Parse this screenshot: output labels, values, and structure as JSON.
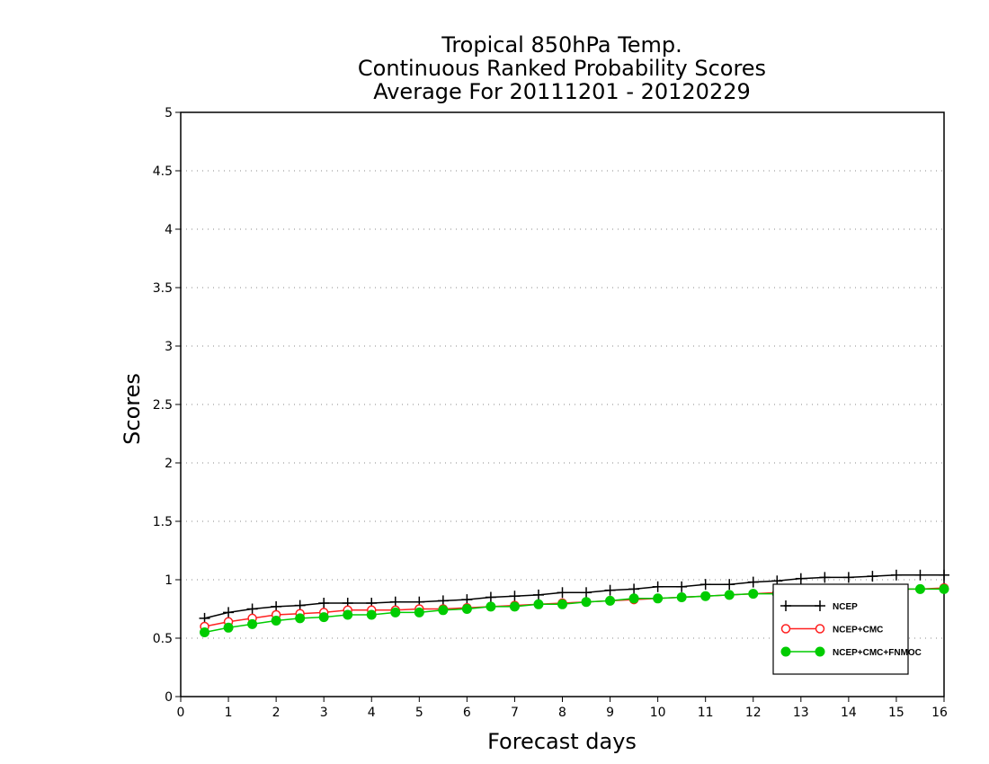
{
  "chart_data": {
    "type": "line",
    "title": [
      "Tropical 850hPa Temp.",
      "Continuous Ranked Probability Scores",
      "Average For 20111201 - 20120229"
    ],
    "xlabel": "Forecast days",
    "ylabel": "Scores",
    "xlim": [
      0,
      16
    ],
    "ylim": [
      0,
      5
    ],
    "x_ticks": [
      "0",
      "1",
      "2",
      "3",
      "4",
      "5",
      "6",
      "7",
      "8",
      "9",
      "10",
      "11",
      "12",
      "13",
      "14",
      "15",
      "16"
    ],
    "y_ticks": [
      "0",
      "0.5",
      "1",
      "1.5",
      "2",
      "2.5",
      "3",
      "3.5",
      "4",
      "4.5",
      "5"
    ],
    "grid": "horizontal dotted",
    "legend_position": "lower-right",
    "x": [
      0.5,
      1,
      1.5,
      2,
      2.5,
      3,
      3.5,
      4,
      4.5,
      5,
      5.5,
      6,
      6.5,
      7,
      7.5,
      8,
      8.5,
      9,
      9.5,
      10,
      10.5,
      11,
      11.5,
      12,
      12.5,
      13,
      13.5,
      14,
      14.5,
      15,
      15.5,
      16
    ],
    "series": [
      {
        "name": "NCEP",
        "color": "#000000",
        "marker": "plus",
        "values": [
          0.67,
          0.72,
          0.75,
          0.77,
          0.78,
          0.8,
          0.8,
          0.8,
          0.81,
          0.81,
          0.82,
          0.83,
          0.85,
          0.86,
          0.87,
          0.89,
          0.89,
          0.91,
          0.92,
          0.94,
          0.94,
          0.96,
          0.96,
          0.98,
          0.99,
          1.01,
          1.02,
          1.02,
          1.03,
          1.04,
          1.04,
          1.04
        ]
      },
      {
        "name": "NCEP+CMC",
        "color": "#ff2020",
        "marker": "open-circle",
        "values": [
          0.6,
          0.64,
          0.67,
          0.7,
          0.71,
          0.72,
          0.74,
          0.74,
          0.74,
          0.75,
          0.75,
          0.76,
          0.77,
          0.78,
          0.79,
          0.8,
          0.81,
          0.82,
          0.83,
          0.84,
          0.85,
          0.86,
          0.87,
          0.88,
          0.89,
          0.9,
          0.9,
          0.91,
          0.91,
          0.92,
          0.92,
          0.93
        ]
      },
      {
        "name": "NCEP+CMC+FNMOC",
        "color": "#00cc00",
        "marker": "filled-circle",
        "values": [
          0.55,
          0.59,
          0.62,
          0.65,
          0.67,
          0.68,
          0.7,
          0.7,
          0.72,
          0.72,
          0.74,
          0.75,
          0.77,
          0.77,
          0.79,
          0.79,
          0.81,
          0.82,
          0.84,
          0.84,
          0.85,
          0.86,
          0.87,
          0.88,
          0.88,
          0.9,
          0.9,
          0.91,
          0.91,
          0.92,
          0.92,
          0.92
        ]
      }
    ]
  }
}
